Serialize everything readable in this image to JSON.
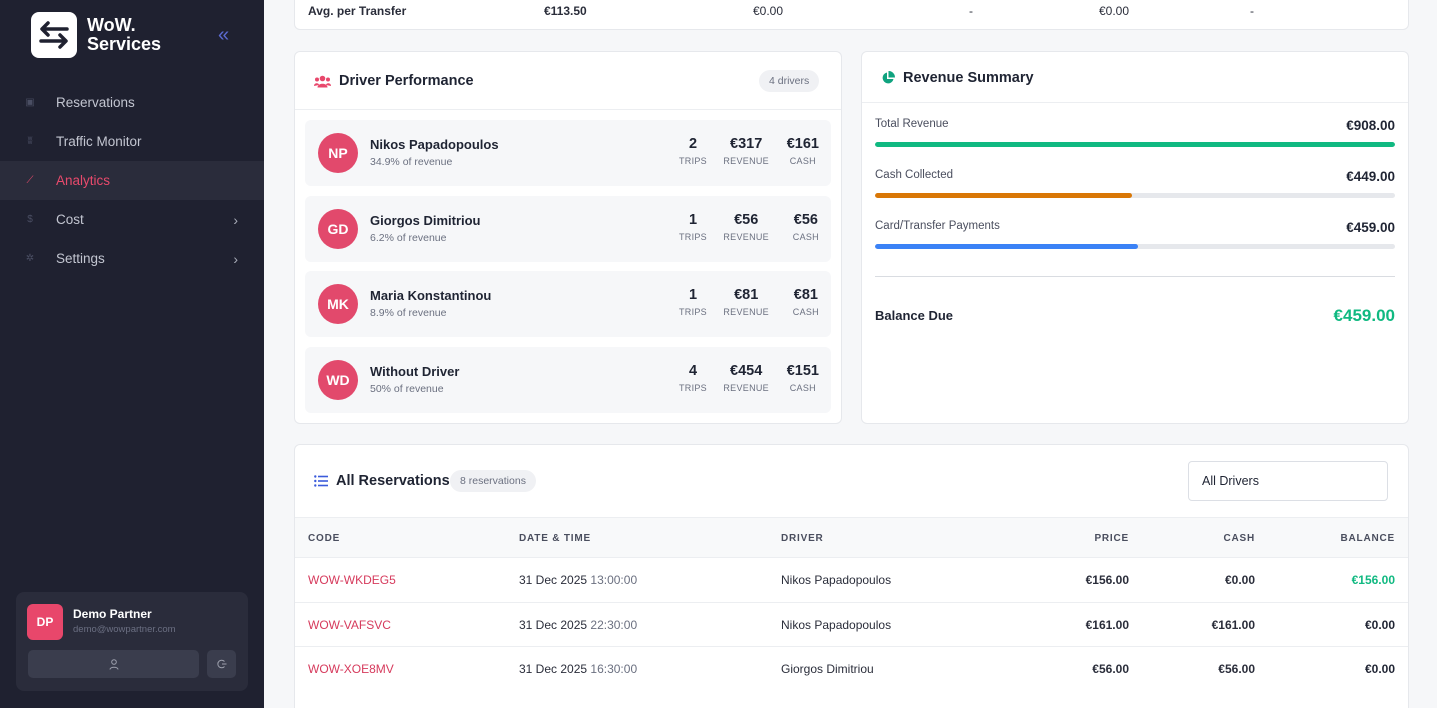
{
  "app": {
    "logo_line1": "WoW.",
    "logo_line2": "Services"
  },
  "sidebar": {
    "items": [
      {
        "label": "Reservations",
        "icon": "calendar-icon"
      },
      {
        "label": "Traffic Monitor",
        "icon": "signal-icon"
      },
      {
        "label": "Analytics",
        "icon": "chart-line-icon",
        "active": true
      },
      {
        "label": "Cost",
        "icon": "dollar-icon",
        "has_submenu": true
      },
      {
        "label": "Settings",
        "icon": "gear-icon",
        "has_submenu": true
      }
    ],
    "user": {
      "initials": "DP",
      "name": "Demo Partner",
      "email": "demo@wowpartner.com"
    }
  },
  "summary_row": {
    "label": "Avg. per Transfer",
    "values": [
      "€113.50",
      "€0.00",
      "-",
      "€0.00",
      "-"
    ]
  },
  "driver_performance": {
    "title": "Driver Performance",
    "count": "4 drivers",
    "stat_labels": {
      "trips": "TRIPS",
      "revenue": "REVENUE",
      "cash": "CASH"
    },
    "drivers": [
      {
        "initials": "NP",
        "name": "Nikos Papadopoulos",
        "share": "34.9% of revenue",
        "trips": "2",
        "revenue": "€317",
        "cash": "€161"
      },
      {
        "initials": "GD",
        "name": "Giorgos Dimitriou",
        "share": "6.2% of revenue",
        "trips": "1",
        "revenue": "€56",
        "cash": "€56"
      },
      {
        "initials": "MK",
        "name": "Maria Konstantinou",
        "share": "8.9% of revenue",
        "trips": "1",
        "revenue": "€81",
        "cash": "€81"
      },
      {
        "initials": "WD",
        "name": "Without Driver",
        "share": "50% of revenue",
        "trips": "4",
        "revenue": "€454",
        "cash": "€151"
      }
    ]
  },
  "revenue_summary": {
    "title": "Revenue Summary",
    "rows": [
      {
        "label": "Total Revenue",
        "value": "€908.00",
        "fraction": 1.0,
        "color": "#10b981"
      },
      {
        "label": "Cash Collected",
        "value": "€449.00",
        "fraction": 0.494,
        "color": "#d97706"
      },
      {
        "label": "Card/Transfer Payments",
        "value": "€459.00",
        "fraction": 0.506,
        "color": "#3b82f6"
      }
    ],
    "balance_label": "Balance Due",
    "balance_value": "€459.00",
    "balance_color": "#10b981"
  },
  "reservations": {
    "title": "All Reservations",
    "count": "8 reservations",
    "filter_value": "All Drivers",
    "columns": [
      "CODE",
      "DATE & TIME",
      "DRIVER",
      "PRICE",
      "CASH",
      "BALANCE"
    ],
    "rows": [
      {
        "code": "WOW-WKDEG5",
        "date": "31 Dec 2025",
        "time": "13:00:00",
        "driver": "Nikos Papadopoulos",
        "price": "€156.00",
        "cash": "€0.00",
        "balance": "€156.00",
        "balance_positive": true
      },
      {
        "code": "WOW-VAFSVC",
        "date": "31 Dec 2025",
        "time": "22:30:00",
        "driver": "Nikos Papadopoulos",
        "price": "€161.00",
        "cash": "€161.00",
        "balance": "€0.00",
        "balance_positive": false
      },
      {
        "code": "WOW-XOE8MV",
        "date": "31 Dec 2025",
        "time": "16:30:00",
        "driver": "Giorgos Dimitriou",
        "price": "€56.00",
        "cash": "€56.00",
        "balance": "€0.00",
        "balance_positive": false
      }
    ]
  },
  "colors": {
    "accent": "#e8476b",
    "sidebar_bg": "#1f2130",
    "positive": "#10b981"
  }
}
